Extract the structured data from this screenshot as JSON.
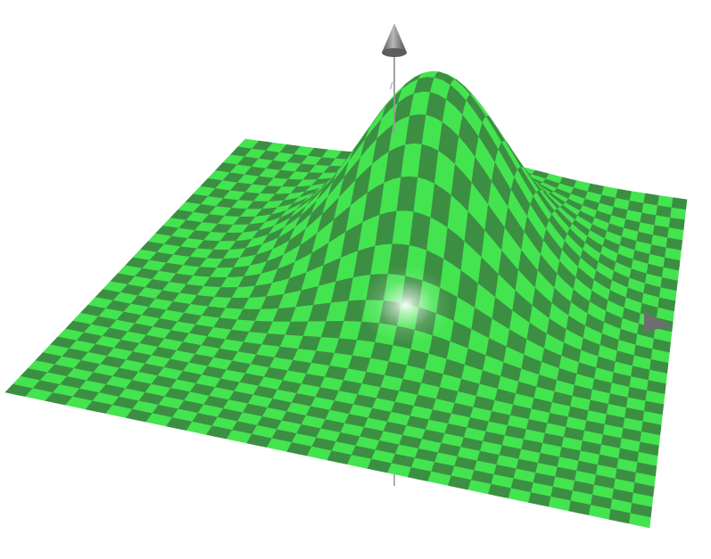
{
  "scene": {
    "type": "3d-surface-plot",
    "surface": "gaussian-peak",
    "texture": "checkerboard",
    "checker_count": 32,
    "colors": {
      "background": "#ffffff",
      "checker_light": "#44e450",
      "checker_dark": "#3c8f42",
      "axis": "#9a9a9a",
      "arrowhead": "#6e6e6e"
    },
    "axes": [
      {
        "name": "x-axis",
        "icon": "cone-arrowhead"
      },
      {
        "name": "y-axis",
        "icon": "cone-arrowhead"
      },
      {
        "name": "z-axis",
        "icon": "cone-arrowhead"
      }
    ]
  }
}
